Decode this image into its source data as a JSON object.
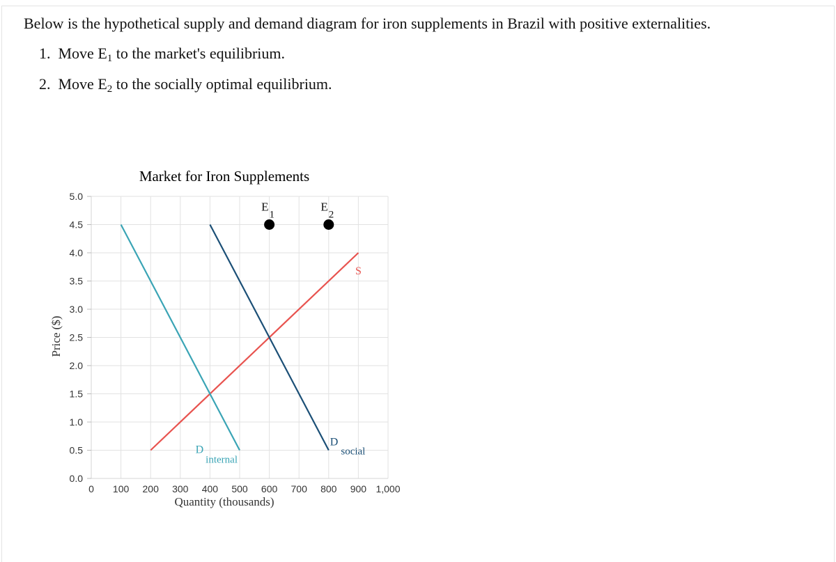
{
  "question": {
    "intro": "Below is the hypothetical supply and demand diagram for iron supplements in Brazil with positive externalities.",
    "steps": [
      {
        "num": "1.",
        "pre": "Move E",
        "sub": "1",
        "post": " to the market's equilibrium."
      },
      {
        "num": "2.",
        "pre": "Move E",
        "sub": "2",
        "post": " to the socially optimal equilibrium."
      }
    ]
  },
  "chart_data": {
    "type": "line",
    "title": "Market for Iron Supplements",
    "xlabel": "Quantity (thousands)",
    "ylabel": "Price ($)",
    "xlim": [
      0,
      1000
    ],
    "ylim": [
      0,
      5
    ],
    "x_ticks": [
      0,
      100,
      200,
      300,
      400,
      500,
      600,
      700,
      800,
      900,
      1000
    ],
    "x_tick_labels": [
      "0",
      "100",
      "200",
      "300",
      "400",
      "500",
      "600",
      "700",
      "800",
      "900",
      "1,000"
    ],
    "y_ticks": [
      0,
      0.5,
      1,
      1.5,
      2,
      2.5,
      3,
      3.5,
      4,
      4.5,
      5
    ],
    "y_tick_labels": [
      "0.0",
      "0.5",
      "1.0",
      "1.5",
      "2.0",
      "2.5",
      "3.0",
      "3.5",
      "4.0",
      "4.5",
      "5.0"
    ],
    "grid": true,
    "series": [
      {
        "name": "S",
        "main": "S",
        "sub": "",
        "color": "#e8534f",
        "points": [
          [
            200,
            0.5
          ],
          [
            900,
            4.0
          ]
        ]
      },
      {
        "name": "D internal",
        "main": "D",
        "sub": "internal",
        "color": "#3aa4b5",
        "points": [
          [
            100,
            4.5
          ],
          [
            500,
            0.5
          ]
        ]
      },
      {
        "name": "D social",
        "main": "D",
        "sub": "social",
        "color": "#1b4f76",
        "points": [
          [
            400,
            4.5
          ],
          [
            800,
            0.5
          ]
        ]
      }
    ],
    "points": [
      {
        "name": "E1",
        "main": "E",
        "sub": "1",
        "x": 600,
        "y": 4.5,
        "color": "#000000"
      },
      {
        "name": "E2",
        "main": "E",
        "sub": "2",
        "x": 800,
        "y": 4.5,
        "color": "#000000"
      }
    ]
  }
}
